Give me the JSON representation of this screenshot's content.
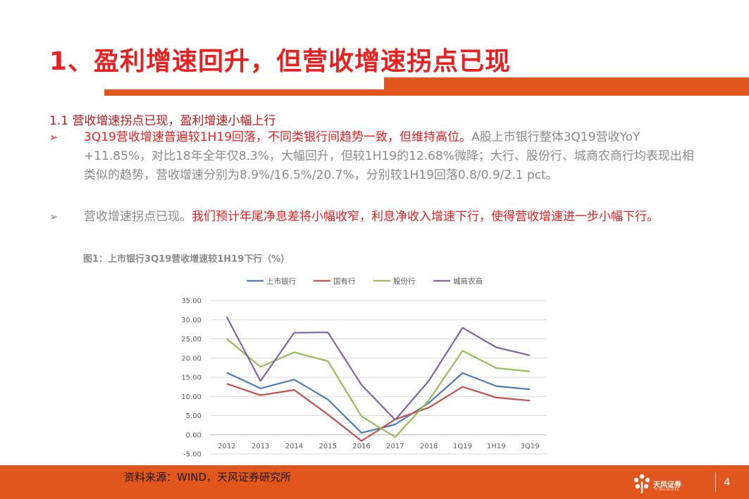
{
  "title": "1、盈利增速回升，但营收增速拐点已现",
  "subheading": "1.1 营收增速拐点已现，盈利增速小幅上行",
  "bullets": [
    {
      "arrow": "➢",
      "highlight": "3Q19营收增速普遍较1H19回落，不同类银行间趋势一致，但维持高位。",
      "body": "A股上市银行整体3Q19营收YoY +11.85%，对比18年全年仅8.3%，大幅回升，但较1H19的12.68%微降；大行、股份行、城商农商行均表现出相类似的趋势，营收增速分别为8.9%/16.5%/20.7%，分别较1H19回落0.8/0.9/2.1 pct。"
    },
    {
      "arrow": "➢",
      "lead": "营收增速拐点已现。",
      "highlight": "我们预计年尾净息差将小幅收窄，利息净收入增速下行，使得营收增速进一步小幅下行。"
    }
  ],
  "figure_caption": "图1：上市银行3Q19营收增速较1H19下行（%）",
  "source": "资料来源：WIND，天风证券研究所",
  "page_number": "4",
  "logo": {
    "name": "天风证券",
    "sub": "TF SECURITIES"
  },
  "colors": {
    "title_red": "#e8201f",
    "accent_orange": "#e0561c"
  },
  "chart_data": {
    "type": "line",
    "categories": [
      "2012",
      "2013",
      "2014",
      "2015",
      "2016",
      "2017",
      "2018",
      "1Q19",
      "1H19",
      "3Q19"
    ],
    "ylim": [
      -5,
      35
    ],
    "yticks": [
      "35.00",
      "30.00",
      "25.00",
      "20.00",
      "15.00",
      "10.00",
      "5.00",
      "0.00",
      "-5.00"
    ],
    "ytick_values": [
      35,
      30,
      25,
      20,
      15,
      10,
      5,
      0,
      -5
    ],
    "legend_position": "top",
    "grid": true,
    "series": [
      {
        "name": "上市银行",
        "color": "#4a7ebb",
        "values": [
          16.2,
          12.1,
          14.4,
          9.2,
          0.5,
          2.7,
          8.3,
          16.1,
          12.68,
          11.85
        ]
      },
      {
        "name": "国有行",
        "color": "#c0504d",
        "values": [
          13.3,
          10.3,
          11.7,
          5.3,
          -1.6,
          4.0,
          7.1,
          12.5,
          9.7,
          8.9
        ]
      },
      {
        "name": "股份行",
        "color": "#9bbb59",
        "values": [
          25.0,
          17.7,
          21.5,
          19.2,
          4.8,
          -0.6,
          9.0,
          21.9,
          17.4,
          16.5
        ]
      },
      {
        "name": "城商农商",
        "color": "#8064a2",
        "values": [
          30.7,
          14.0,
          26.6,
          26.7,
          13.0,
          3.9,
          14.1,
          27.9,
          22.8,
          20.7
        ]
      }
    ]
  }
}
